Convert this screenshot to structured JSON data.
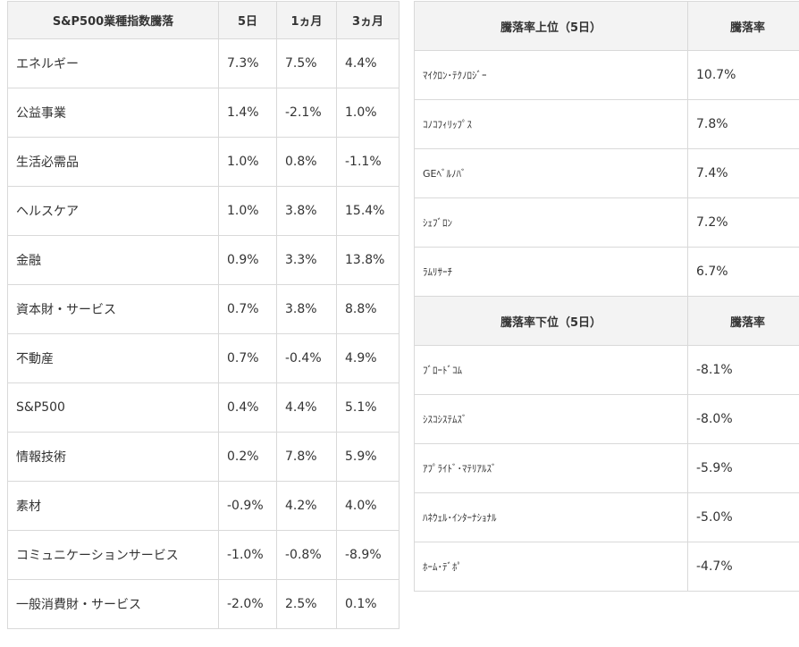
{
  "sector_table": {
    "headers": [
      "S&P500業種指数騰落",
      "5日",
      "1ヵ月",
      "3ヵ月"
    ],
    "rows": [
      [
        "エネルギー",
        "7.3%",
        "7.5%",
        "4.4%"
      ],
      [
        "公益事業",
        "1.4%",
        "-2.1%",
        "1.0%"
      ],
      [
        "生活必需品",
        "1.0%",
        "0.8%",
        "-1.1%"
      ],
      [
        "ヘルスケア",
        "1.0%",
        "3.8%",
        "15.4%"
      ],
      [
        "金融",
        "0.9%",
        "3.3%",
        "13.8%"
      ],
      [
        "資本財・サービス",
        "0.7%",
        "3.8%",
        "8.8%"
      ],
      [
        "不動産",
        "0.7%",
        "-0.4%",
        "4.9%"
      ],
      [
        "S&P500",
        "0.4%",
        "4.4%",
        "5.1%"
      ],
      [
        "情報技術",
        "0.2%",
        "7.8%",
        "5.9%"
      ],
      [
        "素材",
        "-0.9%",
        "4.2%",
        "4.0%"
      ],
      [
        "コミュニケーションサービス",
        "-1.0%",
        "-0.8%",
        "-8.9%"
      ],
      [
        "一般消費財・サービス",
        "-2.0%",
        "2.5%",
        "0.1%"
      ]
    ]
  },
  "top_table": {
    "headers": [
      "騰落率上位（5日）",
      "騰落率"
    ],
    "rows": [
      [
        "ﾏｲｸﾛﾝ･ﾃｸﾉﾛｼﾞｰ",
        "10.7%"
      ],
      [
        "ｺﾉｺﾌｨﾘｯﾌﾟｽ",
        "7.8%"
      ],
      [
        "GEﾍﾞﾙﾉﾊﾞ",
        "7.4%"
      ],
      [
        "ｼｪﾌﾞﾛﾝ",
        "7.2%"
      ],
      [
        "ﾗﾑﾘｻｰﾁ",
        "6.7%"
      ]
    ]
  },
  "bottom_table": {
    "headers": [
      "騰落率下位（5日）",
      "騰落率"
    ],
    "rows": [
      [
        "ﾌﾞﾛｰﾄﾞｺﾑ",
        "-8.1%"
      ],
      [
        "ｼｽｺｼｽﾃﾑｽﾞ",
        "-8.0%"
      ],
      [
        "ｱﾌﾟﾗｲﾄﾞ･ﾏﾃﾘｱﾙｽﾞ",
        "-5.9%"
      ],
      [
        "ﾊﾈｳｪﾙ･ｲﾝﾀｰﾅｼｮﾅﾙ",
        "-5.0%"
      ],
      [
        "ﾎｰﾑ･ﾃﾞﾎﾟ",
        "-4.7%"
      ]
    ]
  }
}
